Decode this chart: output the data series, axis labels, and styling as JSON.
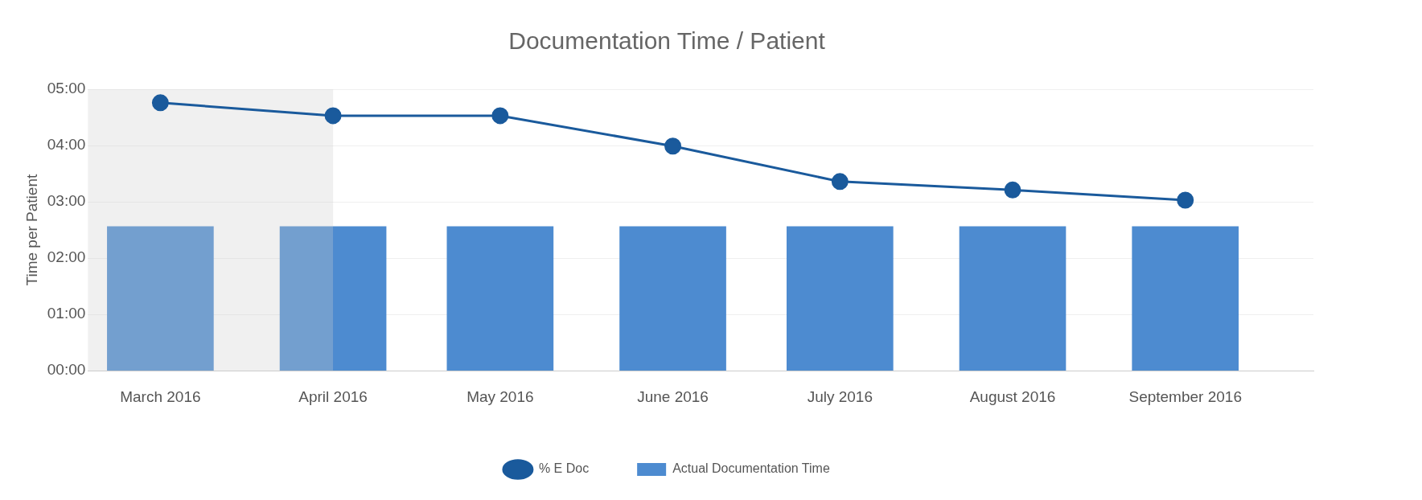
{
  "chart_data": {
    "type": "bar",
    "title": "Documentation Time / Patient",
    "ylabel": "Time per Patient",
    "x": [
      "2016-03-01",
      "2016-04-01",
      "2016-05-01",
      "2016-06-01",
      "2016-07-01",
      "2016-08-01",
      "2016-09-01"
    ],
    "xlim": [
      "2016-02-17",
      "2016-09-24"
    ],
    "xticks": [
      {
        "value": "2016-03-01",
        "label": "March 2016"
      },
      {
        "value": "2016-04-01",
        "label": "April 2016"
      },
      {
        "value": "2016-05-01",
        "label": "May 2016"
      },
      {
        "value": "2016-06-01",
        "label": "June 2016"
      },
      {
        "value": "2016-07-01",
        "label": "July 2016"
      },
      {
        "value": "2016-08-01",
        "label": "August 2016"
      },
      {
        "value": "2016-09-01",
        "label": "September 2016"
      }
    ],
    "ylim": [
      0,
      5
    ],
    "yticks": [
      {
        "value": 0,
        "label": "00:00"
      },
      {
        "value": 1,
        "label": "01:00"
      },
      {
        "value": 2,
        "label": "02:00"
      },
      {
        "value": 3,
        "label": "03:00"
      },
      {
        "value": 4,
        "label": "04:00"
      },
      {
        "value": 5,
        "label": "05:00"
      }
    ],
    "series": [
      {
        "name": "% E Doc",
        "type": "line",
        "color": "#1a5a9c",
        "values": [
          4.76,
          4.53,
          4.53,
          3.99,
          3.36,
          3.21,
          3.03
        ]
      },
      {
        "name": "Actual Documentation Time",
        "color": "#4d8bd0",
        "values": [
          2.56,
          2.56,
          2.56,
          2.56,
          2.56,
          2.56,
          2.56
        ]
      }
    ],
    "bands": [
      {
        "axis": "x",
        "from": "2016-02-17",
        "to": "2016-04-01",
        "color": "#cccccc"
      }
    ],
    "grid": "y",
    "legend": "bottom",
    "marker": "circle",
    "line_style": "solid"
  }
}
